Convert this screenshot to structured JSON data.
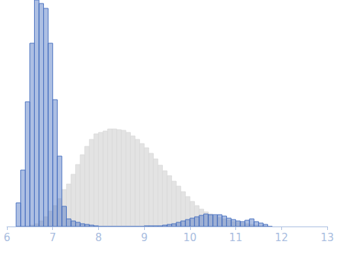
{
  "chart_data": {
    "type": "histogram",
    "bins": [
      6.2,
      6.3,
      6.4,
      6.5,
      6.6,
      6.7,
      6.8,
      6.9,
      7.0,
      7.1,
      7.2,
      7.3,
      7.4,
      7.5,
      7.6,
      7.7,
      7.8,
      7.9,
      8.0,
      8.1,
      8.2,
      8.3,
      8.4,
      8.5,
      8.6,
      8.7,
      8.8,
      8.9,
      9.0,
      9.1,
      9.2,
      9.3,
      9.4,
      9.5,
      9.6,
      9.7,
      9.8,
      9.9,
      10.0,
      10.1,
      10.2,
      10.3,
      10.4,
      10.5,
      10.6,
      10.7,
      10.8,
      10.9,
      11.0,
      11.1,
      11.2,
      11.3,
      11.4,
      11.5,
      11.6,
      11.7,
      11.8
    ],
    "series": [
      {
        "color": "#d9d9d9",
        "values": [
          0,
          0,
          0,
          2,
          4,
          8,
          14,
          22,
          30,
          40,
          53,
          61,
          75,
          89,
          103,
          115,
          125,
          133,
          135,
          137,
          140,
          140,
          139,
          138,
          135,
          130,
          125,
          119,
          113,
          105,
          97,
          88,
          80,
          73,
          65,
          58,
          50,
          43,
          36,
          30,
          25,
          21,
          18,
          15,
          13,
          11,
          9,
          7,
          6,
          5,
          4,
          3,
          2,
          1,
          0.5,
          0
        ]
      },
      {
        "color": "#4a72c0",
        "values": [
          34,
          81,
          179,
          263,
          325,
          320,
          313,
          263,
          182,
          101,
          29,
          11,
          8,
          6,
          4,
          3,
          2,
          1,
          0,
          0,
          0,
          0,
          0,
          0,
          0,
          0,
          0,
          0,
          1,
          1,
          1,
          1,
          2,
          3,
          4,
          6,
          8,
          10,
          12,
          14,
          16,
          18,
          17,
          17,
          17,
          15,
          12,
          10,
          8,
          7,
          9,
          11,
          7,
          5,
          3,
          0
        ]
      }
    ],
    "xlim": [
      6,
      13
    ],
    "xticks": [
      6,
      7,
      8,
      9,
      10,
      11,
      12,
      13
    ],
    "ylim": [
      0,
      325
    ],
    "tick_labels": "x",
    "grid": false
  }
}
